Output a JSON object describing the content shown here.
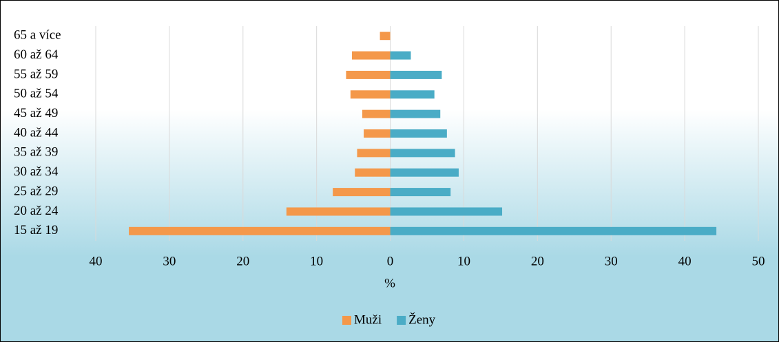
{
  "chart_data": {
    "type": "bar",
    "orientation": "horizontal",
    "categories": [
      "15 až 19",
      "20 až 24",
      "25 až 29",
      "30 až 34",
      "35 až 39",
      "40 až 44",
      "45 až 49",
      "50 až 54",
      "55 až 59",
      "60 až 64",
      "65 a více"
    ],
    "series": [
      {
        "name": "Muži",
        "color": "#f4984a",
        "values": [
          -35.5,
          -14.1,
          -7.8,
          -4.8,
          -4.5,
          -3.6,
          -3.8,
          -5.4,
          -6.0,
          -5.2,
          -1.4
        ]
      },
      {
        "name": "Ženy",
        "color": "#4aacc6",
        "values": [
          44.3,
          15.2,
          8.2,
          9.3,
          8.8,
          7.7,
          6.8,
          6.0,
          7.0,
          2.8,
          null
        ]
      }
    ],
    "xlabel": "%",
    "xlim": [
      -40,
      50
    ],
    "xticks": [
      {
        "value": -40,
        "label": "40"
      },
      {
        "value": -30,
        "label": "30"
      },
      {
        "value": -20,
        "label": "20"
      },
      {
        "value": -10,
        "label": "10"
      },
      0,
      10,
      20,
      30,
      40,
      50
    ],
    "grid": true,
    "legend": "bottom"
  }
}
